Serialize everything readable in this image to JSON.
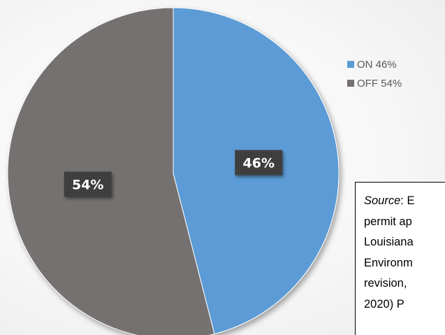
{
  "chart_data": {
    "type": "pie",
    "categories": [
      "ON",
      "OFF"
    ],
    "values": [
      46,
      54
    ],
    "unit": "%",
    "data_labels": [
      "46%",
      "54%"
    ],
    "colors": [
      "#5b9bd5",
      "#767171"
    ],
    "legend": {
      "placement": "right",
      "entries": [
        {
          "label": "ON 46%",
          "color": "#5b9bd5"
        },
        {
          "label": "OFF 54%",
          "color": "#767171"
        }
      ]
    },
    "start_angle": "top (12 o'clock), clockwise"
  },
  "source_note": {
    "label": "Source",
    "lines": [
      ": E",
      "permit ap",
      "Louisiana",
      "Environm",
      "revision,",
      "2020) P"
    ]
  }
}
